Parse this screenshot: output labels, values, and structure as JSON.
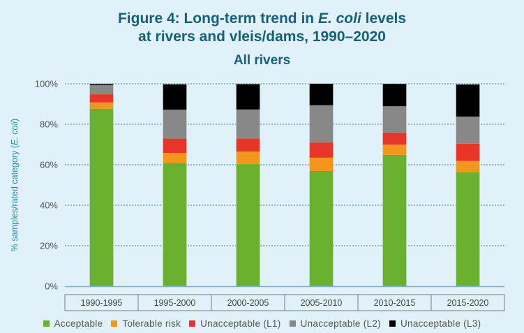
{
  "chart_data": {
    "type": "bar",
    "stacked": true,
    "title_parts": [
      "Figure 4: Long-term trend in ",
      "E. coli",
      " levels"
    ],
    "title_line2": "at rivers and vleis/dams, 1990–2020",
    "subtitle": "All rivers",
    "xlabel": "",
    "ylabel_parts": [
      "% samples/rated category (",
      "E. coli",
      ")"
    ],
    "ylim": [
      0,
      100
    ],
    "yticks": [
      0,
      20,
      40,
      60,
      80,
      100
    ],
    "ytick_labels": [
      "0%",
      "20%",
      "40%",
      "60%",
      "80%",
      "100%"
    ],
    "grid": true,
    "legend_position": "bottom",
    "categories": [
      "1990-1995",
      "1995-2000",
      "2000-2005",
      "2005-2010",
      "2010-2015",
      "2015-2020"
    ],
    "series": [
      {
        "name": "Acceptable",
        "color": "#69b12e",
        "values": [
          87.7,
          60.9,
          60.3,
          56.9,
          64.9,
          56.3
        ]
      },
      {
        "name": "Tolerable risk",
        "color": "#f5961c",
        "values": [
          3.1,
          4.9,
          6.2,
          6.6,
          5.0,
          5.6
        ]
      },
      {
        "name": "Unacceptable (L1)",
        "color": "#e8352a",
        "values": [
          4.0,
          7.1,
          6.5,
          7.5,
          6.0,
          8.5
        ]
      },
      {
        "name": "Unacceptable (L2)",
        "color": "#888888",
        "values": [
          4.6,
          14.3,
          14.3,
          18.4,
          13.0,
          13.4
        ]
      },
      {
        "name": "Unacceptable (L3)",
        "color": "#000000",
        "values": [
          0.6,
          12.6,
          12.6,
          10.7,
          11.1,
          15.9
        ]
      }
    ]
  },
  "colors": {
    "background": "#e1f1fa",
    "title": "#17607a",
    "gridline": "#2a7a95"
  }
}
